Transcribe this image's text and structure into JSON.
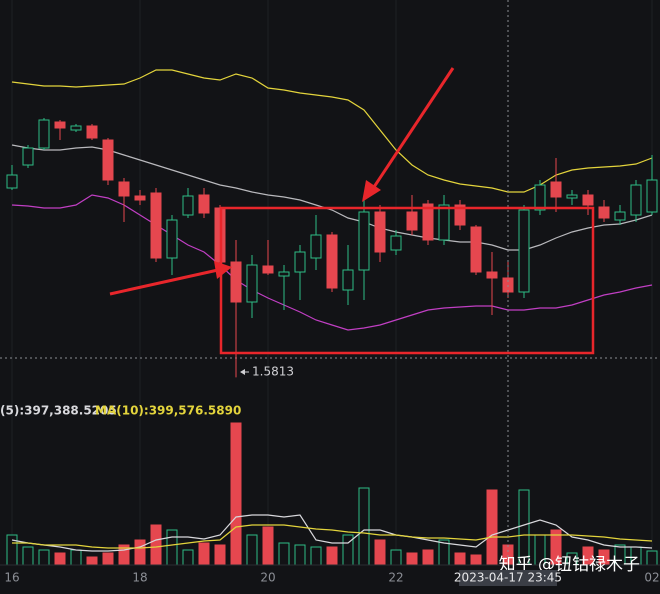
{
  "chart_data": {
    "type": "candlestick",
    "categories": [
      "16",
      null,
      null,
      null,
      null,
      null,
      null,
      null,
      "18",
      null,
      null,
      null,
      null,
      null,
      null,
      null,
      "20",
      null,
      null,
      null,
      null,
      null,
      null,
      null,
      "22",
      null,
      null,
      null,
      null,
      null,
      null,
      null,
      null,
      null,
      null,
      null,
      null,
      null,
      null,
      null,
      "02"
    ],
    "open": [
      1.676,
      1.6875,
      1.696,
      1.709,
      1.705,
      1.707,
      1.7,
      1.679,
      1.672,
      1.6735,
      1.641,
      1.6625,
      1.6725,
      1.666,
      1.639,
      1.619,
      1.637,
      1.632,
      1.634,
      1.641,
      1.6525,
      1.625,
      1.635,
      1.664,
      1.645,
      1.664,
      1.668,
      1.65,
      1.6675,
      1.6565,
      1.634,
      1.631,
      1.624,
      1.665,
      1.679,
      1.671,
      1.6725,
      1.6665,
      1.66,
      1.6625,
      1.664
    ],
    "high": [
      1.6875,
      1.6975,
      1.711,
      1.71,
      1.708,
      1.708,
      1.701,
      1.681,
      1.675,
      1.676,
      1.6625,
      1.676,
      1.676,
      1.6675,
      1.65,
      1.6425,
      1.65,
      1.6375,
      1.6475,
      1.6625,
      1.654,
      1.6475,
      1.6725,
      1.6675,
      1.655,
      1.6725,
      1.67,
      1.6725,
      1.67,
      1.6575,
      1.644,
      1.639,
      1.6675,
      1.68,
      1.691,
      1.675,
      1.675,
      1.67,
      1.6675,
      1.68,
      1.6925
    ],
    "low": [
      1.675,
      1.686,
      1.695,
      1.7,
      1.704,
      1.7,
      1.6775,
      1.659,
      1.6675,
      1.639,
      1.6325,
      1.661,
      1.661,
      1.635,
      1.5813,
      1.611,
      1.6325,
      1.615,
      1.62,
      1.635,
      1.624,
      1.6175,
      1.62,
      1.639,
      1.6425,
      1.6525,
      1.6475,
      1.6475,
      1.655,
      1.6325,
      1.6125,
      1.621,
      1.621,
      1.6625,
      1.664,
      1.6675,
      1.6625,
      1.659,
      1.6575,
      1.659,
      1.6625
    ],
    "close": [
      1.6825,
      1.696,
      1.71,
      1.706,
      1.707,
      1.701,
      1.68,
      1.672,
      1.67,
      1.641,
      1.66,
      1.672,
      1.6635,
      1.639,
      1.619,
      1.6375,
      1.6335,
      1.634,
      1.644,
      1.6525,
      1.626,
      1.635,
      1.664,
      1.644,
      1.652,
      1.655,
      1.65,
      1.6675,
      1.6575,
      1.634,
      1.631,
      1.624,
      1.665,
      1.6775,
      1.6715,
      1.6725,
      1.6675,
      1.661,
      1.664,
      1.6775,
      1.68
    ],
    "up_color": "#2ebd85",
    "down_color": "#e5474f",
    "ylim": [
      1.58,
      1.77
    ],
    "bands": [
      {
        "color": "#e3d43c",
        "values": [
          1.729,
          1.728,
          1.727,
          1.727,
          1.7265,
          1.727,
          1.7275,
          1.728,
          1.731,
          1.735,
          1.735,
          1.733,
          1.731,
          1.73,
          1.733,
          1.731,
          1.726,
          1.725,
          1.7235,
          1.7225,
          1.7215,
          1.72,
          1.715,
          1.705,
          1.695,
          1.6875,
          1.6825,
          1.68,
          1.678,
          1.677,
          1.676,
          1.674,
          1.674,
          1.6775,
          1.6825,
          1.685,
          1.686,
          1.6865,
          1.687,
          1.688,
          1.691
        ]
      },
      {
        "color": "#b9b9bd",
        "values": [
          1.6975,
          1.696,
          1.695,
          1.695,
          1.696,
          1.6965,
          1.695,
          1.6925,
          1.69,
          1.6875,
          1.685,
          1.6825,
          1.68,
          1.6775,
          1.676,
          1.674,
          1.6725,
          1.6715,
          1.67,
          1.6675,
          1.665,
          1.661,
          1.659,
          1.656,
          1.654,
          1.6525,
          1.651,
          1.65,
          1.649,
          1.649,
          1.6475,
          1.645,
          1.645,
          1.6475,
          1.651,
          1.654,
          1.656,
          1.6575,
          1.658,
          1.66,
          1.6625
        ]
      },
      {
        "color": "#c13fc4",
        "values": [
          1.6675,
          1.667,
          1.666,
          1.666,
          1.6675,
          1.6725,
          1.671,
          1.6675,
          1.6625,
          1.6575,
          1.6525,
          1.6475,
          1.644,
          1.6375,
          1.63,
          1.625,
          1.621,
          1.6175,
          1.614,
          1.61,
          1.6075,
          1.605,
          1.606,
          1.6075,
          1.61,
          1.6125,
          1.615,
          1.616,
          1.6165,
          1.617,
          1.617,
          1.615,
          1.615,
          1.616,
          1.616,
          1.6175,
          1.62,
          1.6225,
          1.624,
          1.626,
          1.6275
        ]
      }
    ],
    "min_price": 1.5813,
    "volume": [
      300000,
      180000,
      150000,
      120000,
      150000,
      80000,
      120000,
      200000,
      250000,
      400000,
      350000,
      150000,
      220000,
      200000,
      1420000,
      300000,
      380000,
      220000,
      200000,
      180000,
      180000,
      300000,
      770000,
      250000,
      150000,
      120000,
      150000,
      250000,
      120000,
      100000,
      750000,
      200000,
      750000,
      300000,
      350000,
      120000,
      180000,
      150000,
      200000,
      180000,
      140000
    ],
    "volume_ylim": [
      0,
      1450000
    ],
    "volume_ma": [
      {
        "name": "(5):397,388.5205",
        "color": "#d8d8dc",
        "values": [
          250000,
          220000,
          200000,
          180000,
          150000,
          140000,
          140000,
          150000,
          180000,
          250000,
          280000,
          280000,
          260000,
          300000,
          480000,
          500000,
          500000,
          480000,
          500000,
          250000,
          220000,
          220000,
          350000,
          350000,
          300000,
          280000,
          250000,
          220000,
          200000,
          180000,
          300000,
          350000,
          400000,
          450000,
          400000,
          280000,
          250000,
          200000,
          180000,
          180000,
          170000
        ]
      },
      {
        "name": "MA(10):399,576.5890",
        "color": "#e3d43c",
        "values": [
          220000,
          220000,
          200000,
          200000,
          200000,
          180000,
          170000,
          170000,
          170000,
          180000,
          200000,
          220000,
          240000,
          250000,
          380000,
          400000,
          400000,
          400000,
          380000,
          360000,
          350000,
          330000,
          320000,
          300000,
          300000,
          280000,
          270000,
          270000,
          260000,
          250000,
          280000,
          280000,
          300000,
          300000,
          300000,
          300000,
          290000,
          280000,
          260000,
          250000,
          240000
        ]
      }
    ],
    "crosshair_index": 31,
    "crosshair_label": "2023-04-17 23:45",
    "watermark": "知乎 @钮钴禄木子"
  }
}
